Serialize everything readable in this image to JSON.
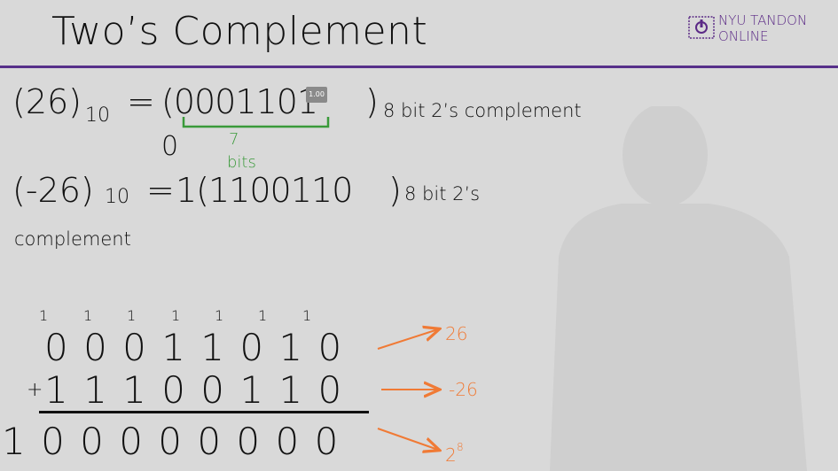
{
  "title": "Two’s Complement",
  "logo": {
    "line1": "NYU TANDON",
    "line2": "ONLINE"
  },
  "line1": {
    "lhs": "(26)",
    "lhs_base": "10",
    "eq": "=",
    "value": "(0001101",
    "badge": "1.00",
    "close": ")",
    "suffix": "8 bit 2’s complement",
    "extra_zero": "0",
    "brace_label_1": "7",
    "brace_label_2": "bits"
  },
  "line2": {
    "lhs": "(-26)",
    "lhs_base": "10",
    "eq": "=",
    "value": "1(1100110",
    "close": ")",
    "suffix": "8 bit 2’s",
    "suffix_wrap": "complement"
  },
  "addition": {
    "carries": [
      "1",
      "1",
      "1",
      "1",
      "1",
      "1",
      "1"
    ],
    "row1": "0 0 0 1 1 0 1 0",
    "plus": "+",
    "row2": "1 1 1 0 0 1 1 0",
    "result": "1 0 0 0 0 0 0 0 0",
    "annotations": [
      "26",
      "-26",
      "2",
      "8"
    ]
  },
  "colors": {
    "accent_purple": "#57308a",
    "annotation_orange": "#f07a35",
    "brace_green": "#3a9a3a"
  }
}
